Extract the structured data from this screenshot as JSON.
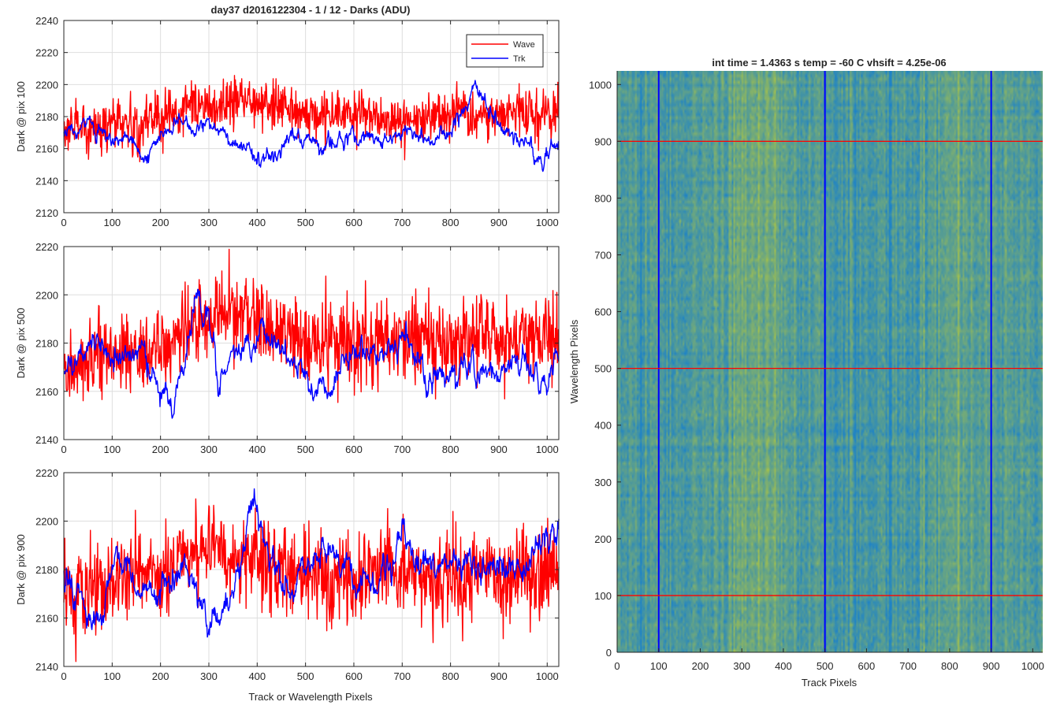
{
  "figure": {
    "title": "day37 d2016122304 - 1 / 12 - Darks (ADU)",
    "xlabel_bottom": "Track or Wavelength Pixels",
    "legend": [
      "Wave",
      "Trk"
    ],
    "colors": {
      "wave": "#ff0000",
      "trk": "#0000ff",
      "grid": "#dedede",
      "axis": "#262626"
    }
  },
  "chart_data": [
    {
      "type": "line",
      "ylabel": "Dark @ pix 100",
      "xlim": [
        0,
        1024
      ],
      "ylim": [
        2120,
        2240
      ],
      "xticks": [
        "0",
        "100",
        "200",
        "300",
        "400",
        "500",
        "600",
        "700",
        "800",
        "900",
        "1000"
      ],
      "yticks": [
        "2120",
        "2140",
        "2160",
        "2180",
        "2200",
        "2220",
        "2240"
      ],
      "grid": true,
      "legend_position": "top-right",
      "series": [
        {
          "name": "Wave",
          "x": [
            0,
            50,
            100,
            150,
            200,
            250,
            275,
            300,
            350,
            400,
            450,
            500,
            550,
            600,
            650,
            700,
            750,
            800,
            850,
            900,
            950,
            1000,
            1024
          ],
          "y": [
            2172,
            2174,
            2176,
            2175,
            2178,
            2183,
            2188,
            2186,
            2190,
            2190,
            2186,
            2182,
            2181,
            2182,
            2180,
            2178,
            2180,
            2182,
            2181,
            2182,
            2182,
            2181,
            2182
          ]
        },
        {
          "name": "Trk",
          "x": [
            0,
            50,
            100,
            150,
            175,
            200,
            250,
            300,
            350,
            400,
            450,
            500,
            550,
            600,
            650,
            700,
            750,
            800,
            850,
            900,
            950,
            1000,
            1024
          ],
          "y": [
            2168,
            2174,
            2170,
            2162,
            2148,
            2172,
            2174,
            2174,
            2165,
            2156,
            2160,
            2165,
            2160,
            2168,
            2166,
            2168,
            2165,
            2170,
            2198,
            2172,
            2164,
            2155,
            2162
          ]
        }
      ]
    },
    {
      "type": "line",
      "ylabel": "Dark @ pix 500",
      "xlim": [
        0,
        1024
      ],
      "ylim": [
        2140,
        2220
      ],
      "xticks": [
        "0",
        "100",
        "200",
        "300",
        "400",
        "500",
        "600",
        "700",
        "800",
        "900",
        "1000"
      ],
      "yticks": [
        "2140",
        "2160",
        "2180",
        "2200",
        "2220"
      ],
      "grid": true,
      "series": [
        {
          "name": "Wave",
          "x": [
            0,
            50,
            100,
            150,
            200,
            250,
            300,
            350,
            400,
            450,
            500,
            550,
            600,
            650,
            700,
            750,
            800,
            850,
            900,
            950,
            1000,
            1024
          ],
          "y": [
            2168,
            2172,
            2174,
            2175,
            2178,
            2186,
            2190,
            2192,
            2188,
            2184,
            2182,
            2180,
            2181,
            2180,
            2181,
            2182,
            2180,
            2182,
            2181,
            2180,
            2181,
            2180
          ]
        },
        {
          "name": "Trk",
          "x": [
            0,
            50,
            100,
            150,
            200,
            225,
            275,
            300,
            320,
            350,
            400,
            450,
            500,
            550,
            600,
            650,
            700,
            750,
            800,
            850,
            900,
            950,
            1000,
            1024
          ],
          "y": [
            2168,
            2180,
            2176,
            2172,
            2162,
            2150,
            2198,
            2192,
            2162,
            2178,
            2182,
            2180,
            2166,
            2158,
            2178,
            2172,
            2182,
            2165,
            2166,
            2170,
            2168,
            2174,
            2162,
            2175
          ]
        }
      ]
    },
    {
      "type": "line",
      "ylabel": "Dark @ pix 900",
      "xlabel": "Track or Wavelength Pixels",
      "xlim": [
        0,
        1024
      ],
      "ylim": [
        2140,
        2220
      ],
      "xticks": [
        "0",
        "100",
        "200",
        "300",
        "400",
        "500",
        "600",
        "700",
        "800",
        "900",
        "1000"
      ],
      "yticks": [
        "2140",
        "2160",
        "2180",
        "2200",
        "2220"
      ],
      "grid": true,
      "series": [
        {
          "name": "Wave",
          "x": [
            0,
            50,
            100,
            150,
            200,
            250,
            300,
            350,
            400,
            450,
            500,
            550,
            600,
            650,
            700,
            750,
            800,
            850,
            900,
            950,
            1000,
            1024
          ],
          "y": [
            2168,
            2170,
            2174,
            2176,
            2180,
            2184,
            2188,
            2186,
            2184,
            2182,
            2180,
            2178,
            2176,
            2180,
            2178,
            2178,
            2176,
            2178,
            2176,
            2176,
            2180,
            2178
          ]
        },
        {
          "name": "Trk",
          "x": [
            0,
            30,
            60,
            100,
            130,
            160,
            200,
            250,
            300,
            350,
            390,
            420,
            460,
            500,
            550,
            600,
            650,
            700,
            750,
            800,
            850,
            900,
            950,
            1000,
            1024
          ],
          "y": [
            2180,
            2172,
            2150,
            2180,
            2186,
            2168,
            2172,
            2180,
            2160,
            2170,
            2210,
            2190,
            2170,
            2182,
            2188,
            2176,
            2172,
            2195,
            2180,
            2185,
            2178,
            2182,
            2180,
            2190,
            2198
          ]
        }
      ]
    },
    {
      "type": "heatmap",
      "title": "int time = 1.4363 s    temp = -60 C    vhsift = 4.25e-06",
      "xlabel": "Track Pixels",
      "ylabel": "Wavelength Pixels",
      "xlim": [
        0,
        1024
      ],
      "ylim": [
        0,
        1024
      ],
      "xticks": [
        "0",
        "100",
        "200",
        "300",
        "400",
        "500",
        "600",
        "700",
        "800",
        "900",
        "1000"
      ],
      "yticks": [
        "0",
        "100",
        "200",
        "300",
        "400",
        "500",
        "600",
        "700",
        "800",
        "900",
        "1000"
      ],
      "colormap_low": "#1c82c9",
      "colormap_high": "#a7c24a",
      "vertical_lines": {
        "x": [
          100,
          500,
          900
        ],
        "color": "#0000ff"
      },
      "horizontal_lines": {
        "y": [
          100,
          500,
          900
        ],
        "color": "#ff0000"
      }
    }
  ]
}
